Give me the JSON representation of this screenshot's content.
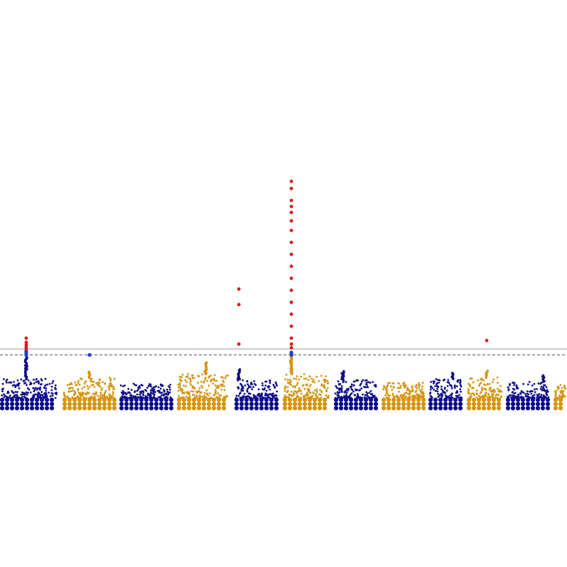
{
  "chart_data": {
    "type": "scatter",
    "subtype": "manhattan",
    "title": "",
    "xlabel": "",
    "ylabel": "",
    "axes_visible": false,
    "grid": false,
    "ylim": [
      0,
      20
    ],
    "thresholds": [
      {
        "name": "genome-wide",
        "value": 5.1,
        "style": "solid",
        "color": "#999999"
      },
      {
        "name": "suggestive",
        "value": 4.6,
        "style": "dashed",
        "color": "#555555"
      }
    ],
    "colors": {
      "odd_chromosome": "#0d0d8a",
      "even_chromosome": "#d4940f",
      "significant": "#e01818",
      "near_threshold": "#1a3fe0"
    },
    "chromosomes": [
      {
        "index": 1,
        "color": "odd",
        "bulk_max": 2.6,
        "peaks": [
          {
            "pos": 0.45,
            "y": 4.5,
            "hits": [
              4.6,
              4.75,
              4.9,
              5.1,
              5.25,
              5.45,
              5.65,
              6.0
            ]
          }
        ]
      },
      {
        "index": 2,
        "color": "even",
        "bulk_max": 2.7,
        "peaks": [
          {
            "pos": 0.5,
            "y": 3.2,
            "hits": [
              4.6
            ]
          }
        ]
      },
      {
        "index": 3,
        "color": "odd",
        "bulk_max": 2.2,
        "peaks": []
      },
      {
        "index": 4,
        "color": "even",
        "bulk_max": 3.0,
        "peaks": [
          {
            "pos": 0.55,
            "y": 4.0,
            "hits": []
          }
        ]
      },
      {
        "index": 5,
        "color": "odd",
        "bulk_max": 2.5,
        "peaks": [
          {
            "pos": 0.1,
            "y": 3.4,
            "hits": [
              5.5,
              8.8,
              10.1
            ]
          }
        ]
      },
      {
        "index": 6,
        "color": "even",
        "bulk_max": 3.0,
        "peaks": [
          {
            "pos": 0.18,
            "y": 4.6,
            "hits": [
              4.6,
              4.7,
              4.8,
              5.2,
              5.5,
              6.0,
              7.0,
              8.0,
              9.0,
              10.0,
              11.0,
              12.0,
              13.0,
              14.0,
              15.0,
              15.8,
              16.5,
              17.0,
              17.5,
              18.5,
              19.1
            ]
          }
        ]
      },
      {
        "index": 7,
        "color": "odd",
        "bulk_max": 2.5,
        "peaks": [
          {
            "pos": 0.2,
            "y": 3.3,
            "hits": []
          }
        ]
      },
      {
        "index": 8,
        "color": "even",
        "bulk_max": 2.3,
        "peaks": []
      },
      {
        "index": 9,
        "color": "odd",
        "bulk_max": 2.6,
        "peaks": [
          {
            "pos": 0.7,
            "y": 3.1,
            "hits": []
          }
        ]
      },
      {
        "index": 10,
        "color": "even",
        "bulk_max": 2.7,
        "peaks": [
          {
            "pos": 0.55,
            "y": 3.3,
            "hits": [
              5.8
            ]
          }
        ]
      },
      {
        "index": 11,
        "color": "odd",
        "bulk_max": 2.4,
        "peaks": [
          {
            "pos": 0.85,
            "y": 2.9,
            "hits": []
          }
        ]
      },
      {
        "index": 12,
        "color": "even",
        "bulk_max": 2.1,
        "peaks": []
      }
    ]
  }
}
